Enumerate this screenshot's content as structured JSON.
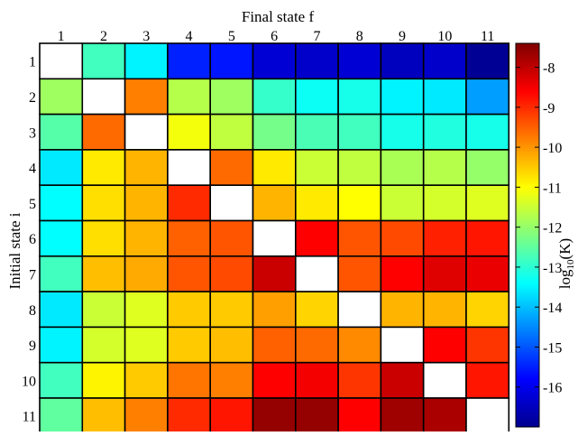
{
  "chart_data": {
    "type": "heatmap",
    "title": "",
    "xlabel": "Final state f",
    "ylabel": "Initial state i",
    "colorbar_label": "log10(K)",
    "colorbar_label_parts": {
      "base": "log",
      "sub": "10",
      "arg": "(K)"
    },
    "x_categories": [
      "1",
      "2",
      "3",
      "4",
      "5",
      "6",
      "7",
      "8",
      "9",
      "10",
      "11"
    ],
    "y_categories": [
      "1",
      "2",
      "3",
      "4",
      "5",
      "6",
      "7",
      "8",
      "9",
      "10",
      "11"
    ],
    "color_range": [
      -17,
      -7.4
    ],
    "colorbar_ticks": [
      "-16",
      "-15",
      "-14",
      "-13",
      "-12",
      "-11",
      "-10",
      "-9",
      "-8"
    ],
    "colormap": "jet",
    "values": [
      [
        null,
        -12.8,
        -13.5,
        -15.5,
        -15.6,
        -16.2,
        -16.3,
        -16.2,
        -16.4,
        -16.3,
        -16.8
      ],
      [
        -11.9,
        null,
        -9.8,
        -11.7,
        -11.9,
        -12.9,
        -13.3,
        -13.2,
        -13.5,
        -13.6,
        -14.3
      ],
      [
        -12.6,
        -9.6,
        null,
        -11.1,
        -11.6,
        -12.3,
        -12.7,
        -12.8,
        -13.2,
        -13.1,
        -13.2
      ],
      [
        -13.6,
        -10.8,
        -10.3,
        null,
        -9.6,
        -10.8,
        -11.5,
        -11.6,
        -11.8,
        -11.7,
        -12.0
      ],
      [
        -13.4,
        -10.7,
        -10.3,
        -9.0,
        null,
        -10.3,
        -10.8,
        -11.0,
        -11.5,
        -11.4,
        -11.3
      ],
      [
        -13.4,
        -10.7,
        -10.3,
        -9.5,
        -9.4,
        null,
        -8.6,
        -9.4,
        -9.3,
        -8.9,
        -8.8
      ],
      [
        -12.8,
        -10.4,
        -10.2,
        -9.4,
        -9.3,
        -8.1,
        null,
        -9.4,
        -8.6,
        -8.3,
        -8.4
      ],
      [
        -13.6,
        -11.5,
        -11.3,
        -10.5,
        -10.5,
        -10.1,
        -10.6,
        null,
        -10.3,
        -10.3,
        -10.6
      ],
      [
        -13.5,
        -11.4,
        -11.3,
        -10.5,
        -10.4,
        -9.5,
        -9.6,
        -9.9,
        null,
        -8.6,
        -9.1
      ],
      [
        -12.8,
        -10.9,
        -10.5,
        -9.7,
        -9.8,
        -8.6,
        -8.5,
        -9.1,
        -8.1,
        null,
        -8.8
      ],
      [
        -12.5,
        -10.4,
        -9.8,
        -9.0,
        -8.8,
        -7.6,
        -7.6,
        -8.6,
        -7.7,
        -7.8,
        null
      ]
    ]
  }
}
